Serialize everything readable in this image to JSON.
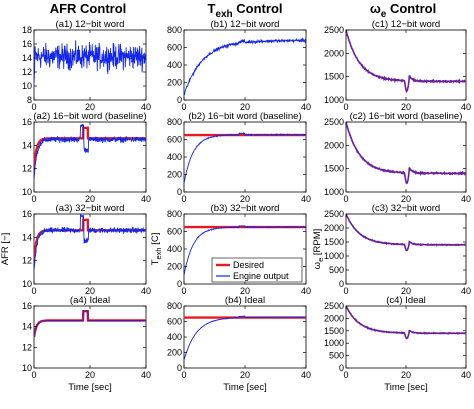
{
  "figure": {
    "column_titles": [
      {
        "main": "AFR Control",
        "sub": ""
      },
      {
        "main": "T",
        "sub": "exh",
        "tail": " Control"
      },
      {
        "main": "ω",
        "sub": "e",
        "tail": " Control"
      }
    ],
    "legend": {
      "desired": "Desired",
      "engine": "Engine output"
    },
    "colors": {
      "desired": "#e8191f",
      "engine": "#1427e6",
      "purple": "#6b1f9a",
      "axis": "#000000"
    }
  },
  "chart_data": [
    {
      "id": "a1",
      "type": "line",
      "title": "(a1) 12−bit word",
      "column": 0,
      "row": 0,
      "xlim": [
        0,
        40
      ],
      "ylim": [
        8,
        18
      ],
      "xticks": [
        0,
        20,
        40
      ],
      "yticks": [
        8,
        10,
        12,
        14,
        16,
        18
      ],
      "ylabel": "",
      "xlabel": "",
      "series": [
        {
          "role": "engine",
          "kind": "noisy",
          "base": 14.2,
          "amp": 2.6,
          "start": 0.2,
          "t0": 0.0
        }
      ]
    },
    {
      "id": "a2",
      "type": "line",
      "title": "(a2) 16−bit word (baseline)",
      "column": 0,
      "row": 1,
      "xlim": [
        0,
        40
      ],
      "ylim": [
        10,
        16
      ],
      "xticks": [
        0,
        20,
        40
      ],
      "yticks": [
        10,
        12,
        14,
        16
      ],
      "ylabel": "",
      "xlabel": "",
      "series": [
        {
          "role": "desired",
          "kind": "afr_ideal",
          "level": 14.6,
          "start": 12.0
        },
        {
          "role": "engine",
          "kind": "afr_noisy",
          "level": 14.5,
          "start": 11.0,
          "amp": 0.35
        }
      ]
    },
    {
      "id": "a3",
      "type": "line",
      "title": "(a3) 32−bit word",
      "column": 0,
      "row": 2,
      "xlim": [
        0,
        40
      ],
      "ylim": [
        10,
        16
      ],
      "xticks": [
        0,
        20,
        40
      ],
      "yticks": [
        10,
        12,
        14,
        16
      ],
      "ylabel": "AFR [−]",
      "xlabel": "",
      "series": [
        {
          "role": "desired",
          "kind": "afr_ideal",
          "level": 14.6,
          "start": 12.0
        },
        {
          "role": "engine",
          "kind": "afr_noisy",
          "level": 14.6,
          "start": 11.0,
          "amp": 0.35
        }
      ]
    },
    {
      "id": "a4",
      "type": "line",
      "title": "(a4) Ideal",
      "column": 0,
      "row": 3,
      "xlim": [
        0,
        40
      ],
      "ylim": [
        10,
        16
      ],
      "xticks": [
        0,
        20,
        40
      ],
      "yticks": [
        10,
        12,
        14,
        16
      ],
      "ylabel": "",
      "xlabel": "Time [sec]",
      "series": [
        {
          "role": "desired",
          "kind": "afr_ideal",
          "level": 14.6,
          "start": 13.0
        },
        {
          "role": "engine",
          "kind": "afr_ideal",
          "level": 14.6,
          "start": 13.0
        }
      ]
    },
    {
      "id": "b1",
      "type": "line",
      "title": "(b1) 12−bit word",
      "column": 1,
      "row": 0,
      "xlim": [
        0,
        40
      ],
      "ylim": [
        0,
        800
      ],
      "xticks": [
        0,
        20,
        40
      ],
      "yticks": [
        0,
        200,
        400,
        600,
        800
      ],
      "ylabel": "",
      "xlabel": "",
      "series": [
        {
          "role": "engine",
          "kind": "texh",
          "start": 60,
          "final": 680,
          "tau": 6.0,
          "amp": 25
        }
      ]
    },
    {
      "id": "b2",
      "type": "line",
      "title": "(b2) 16−bit word (baseline)",
      "column": 1,
      "row": 1,
      "xlim": [
        0,
        40
      ],
      "ylim": [
        0,
        800
      ],
      "xticks": [
        0,
        20,
        40
      ],
      "yticks": [
        0,
        200,
        400,
        600,
        800
      ],
      "ylabel": "",
      "xlabel": "",
      "series": [
        {
          "role": "desired",
          "kind": "const",
          "level": 650
        },
        {
          "role": "engine",
          "kind": "texh",
          "start": 100,
          "final": 655,
          "tau": 3.0,
          "amp": 8
        }
      ]
    },
    {
      "id": "b3",
      "type": "line",
      "title": "(b3) 32−bit word",
      "column": 1,
      "row": 2,
      "xlim": [
        0,
        40
      ],
      "ylim": [
        0,
        800
      ],
      "xticks": [
        0,
        20,
        40
      ],
      "yticks": [
        0,
        200,
        400,
        600,
        800
      ],
      "ylabel": "T_exh [C]",
      "xlabel": "",
      "legend": true,
      "series": [
        {
          "role": "desired",
          "kind": "const",
          "level": 650
        },
        {
          "role": "engine",
          "kind": "texh",
          "start": 100,
          "final": 650,
          "tau": 3.0,
          "amp": 6
        }
      ]
    },
    {
      "id": "b4",
      "type": "line",
      "title": "(b4) Ideal",
      "column": 1,
      "row": 3,
      "xlim": [
        0,
        40
      ],
      "ylim": [
        0,
        800
      ],
      "xticks": [
        0,
        20,
        40
      ],
      "yticks": [
        0,
        200,
        400,
        600,
        800
      ],
      "ylabel": "",
      "xlabel": "Time [sec]",
      "series": [
        {
          "role": "desired",
          "kind": "const",
          "level": 650
        },
        {
          "role": "engine",
          "kind": "texh",
          "start": 100,
          "final": 655,
          "tau": 4.0,
          "amp": 5
        }
      ]
    },
    {
      "id": "c1",
      "type": "line",
      "title": "(c1) 12−bit word",
      "column": 2,
      "row": 0,
      "xlim": [
        0,
        40
      ],
      "ylim": [
        1000,
        2500
      ],
      "xticks": [
        0,
        20,
        40
      ],
      "yticks": [
        1000,
        1500,
        2000,
        2500
      ],
      "ylabel": "",
      "xlabel": "",
      "series": [
        {
          "role": "purple",
          "kind": "speed"
        }
      ]
    },
    {
      "id": "c2",
      "type": "line",
      "title": "(c2) 16−bit word (baseline)",
      "column": 2,
      "row": 1,
      "xlim": [
        0,
        40
      ],
      "ylim": [
        1000,
        2500
      ],
      "xticks": [
        0,
        20,
        40
      ],
      "yticks": [
        1000,
        1500,
        2000,
        2500
      ],
      "ylabel": "",
      "xlabel": "",
      "series": [
        {
          "role": "purple",
          "kind": "speed"
        }
      ]
    },
    {
      "id": "c3",
      "type": "line",
      "title": "(c3) 32−bit word",
      "column": 2,
      "row": 2,
      "xlim": [
        0,
        40
      ],
      "ylim": [
        0,
        2500
      ],
      "xticks": [
        0,
        20,
        40
      ],
      "yticks": [
        0,
        500,
        1000,
        1500,
        2000,
        2500
      ],
      "ylabel": "ω_e [RPM]",
      "xlabel": "",
      "series": [
        {
          "role": "purple",
          "kind": "speed"
        }
      ]
    },
    {
      "id": "c4",
      "type": "line",
      "title": "(c4) Ideal",
      "column": 2,
      "row": 3,
      "xlim": [
        0,
        40
      ],
      "ylim": [
        0,
        2500
      ],
      "xticks": [
        0,
        20,
        40
      ],
      "yticks": [
        0,
        500,
        1000,
        1500,
        2000,
        2500
      ],
      "ylabel": "",
      "xlabel": "Time [sec]",
      "series": [
        {
          "role": "purple",
          "kind": "speed"
        }
      ]
    }
  ]
}
